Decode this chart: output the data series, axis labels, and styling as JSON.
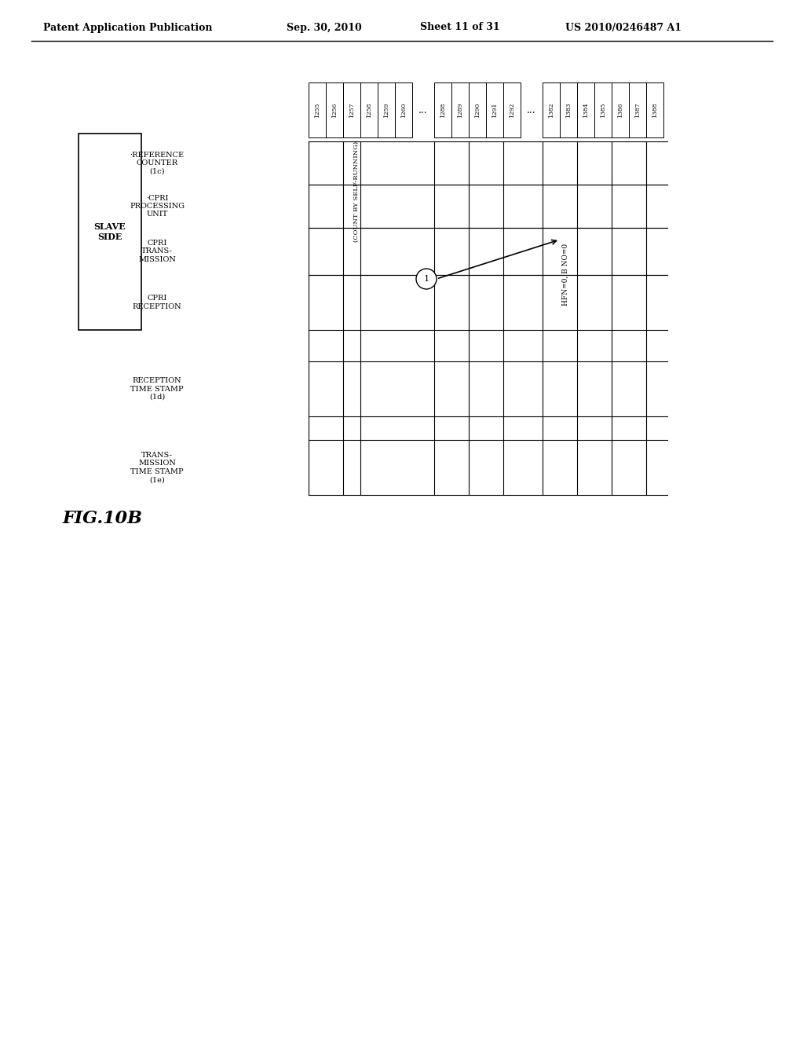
{
  "title_header": "Patent Application Publication",
  "title_date": "Sep. 30, 2010",
  "title_sheet": "Sheet 11 of 31",
  "title_patent": "US 2010/0246487 A1",
  "fig_label": "FIG.10B",
  "background_color": "#ffffff",
  "row_labels": [
    "·REFERENCE\nCOUNTER\n(1c)",
    "·CPRI\nPROCESSING\nUNIT",
    "CPRI\nTRANS-\nMISSION",
    "CPRI\nRECEPTION",
    "RECEPTION\nTIME STAMP\n(1d)",
    "TRANS-\nMISSION\nTIME STAMP\n(1e)"
  ],
  "slave_side_label": "SLAVE\nSIDE",
  "count_label": "(COUNT BY SELF-RUNNING)",
  "counter_groups": [
    {
      "cells": [
        "1255",
        "1256",
        "1257",
        "1258",
        "1259",
        "1260"
      ]
    },
    {
      "cells": [
        "1288",
        "1289",
        "1290",
        "1291",
        "1292"
      ]
    },
    {
      "cells": [
        "1382",
        "1383",
        "1384",
        "1385",
        "1386",
        "1387",
        "1388"
      ]
    }
  ],
  "hfn_label": "HFN=0, B NO=0",
  "arrow_circle_label": "1",
  "ellipsis": "..."
}
